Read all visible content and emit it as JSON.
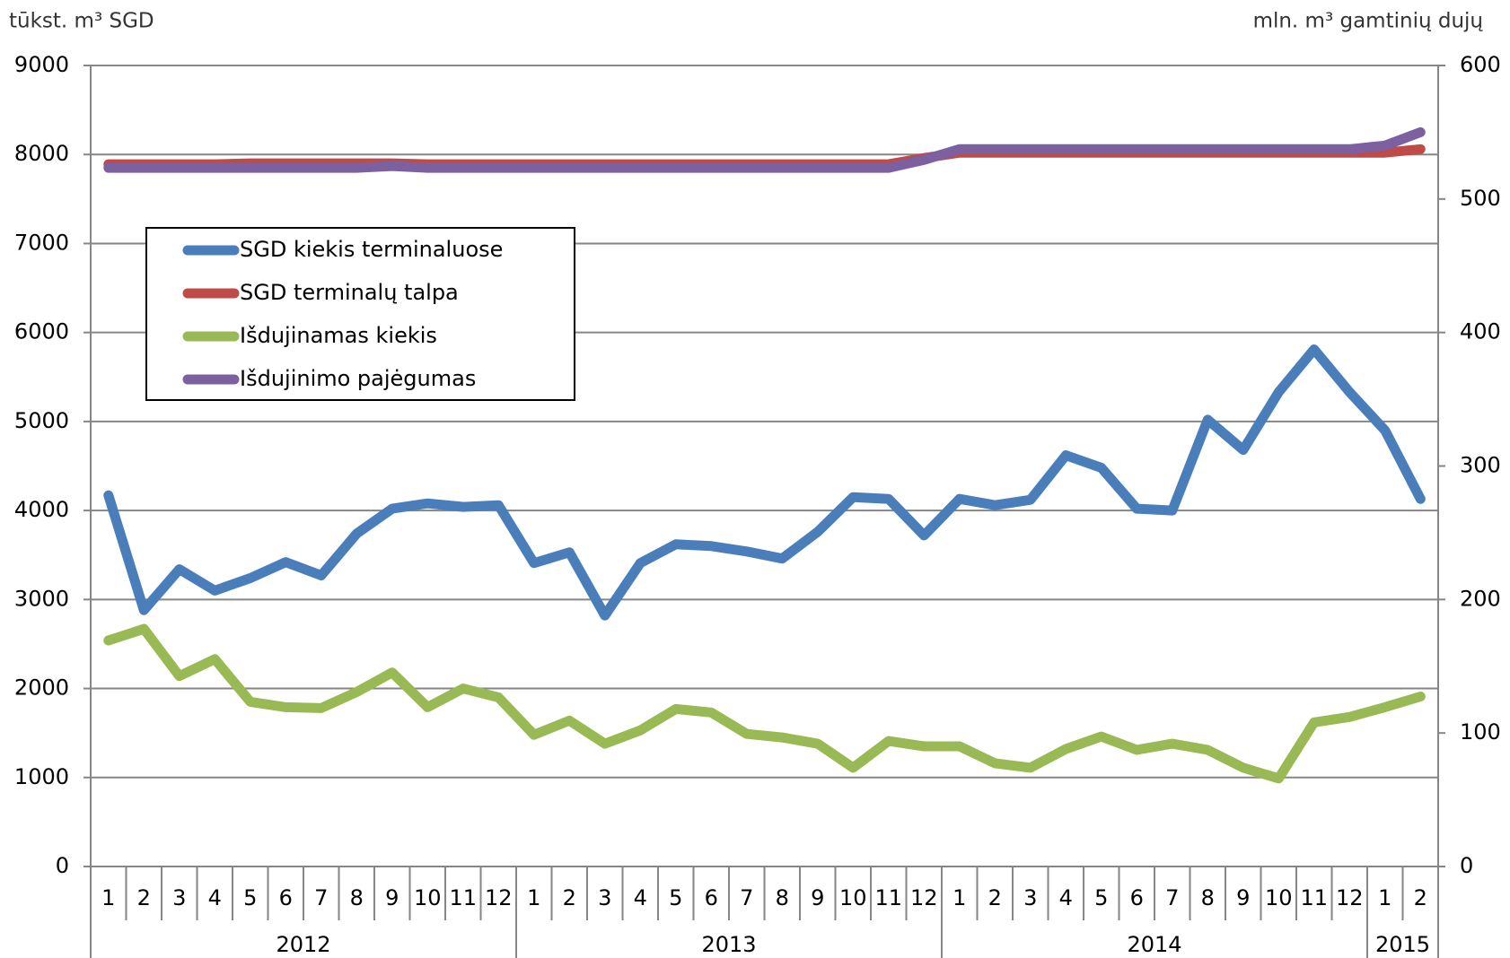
{
  "chart_data": {
    "type": "line",
    "y_axis_label": "tūkst. m³ SGD",
    "y2_axis_label": "mln. m³ gamtinių dujų",
    "categories": [
      "1",
      "2",
      "3",
      "4",
      "5",
      "6",
      "7",
      "8",
      "9",
      "10",
      "11",
      "12",
      "1",
      "2",
      "3",
      "4",
      "5",
      "6",
      "7",
      "8",
      "9",
      "10",
      "11",
      "12",
      "1",
      "2",
      "3",
      "4",
      "5",
      "6",
      "7",
      "8",
      "9",
      "10",
      "11",
      "12",
      "1",
      "2"
    ],
    "year_groups": [
      "2012",
      "2013",
      "2014",
      "2015"
    ],
    "ylim": [
      0,
      9000
    ],
    "yticks": [
      0,
      1000,
      2000,
      3000,
      4000,
      5000,
      6000,
      7000,
      8000,
      9000
    ],
    "y2lim": [
      0,
      600
    ],
    "y2ticks": [
      0,
      100,
      200,
      300,
      400,
      500,
      600
    ],
    "grid": true,
    "legend": "upper left",
    "series": [
      {
        "name": "SGD kiekis terminaluose",
        "color": "#4a7ebb",
        "values": [
          4170,
          2880,
          3340,
          3100,
          3240,
          3420,
          3270,
          3740,
          4020,
          4080,
          4040,
          4060,
          3410,
          3530,
          2820,
          3410,
          3620,
          3600,
          3540,
          3460,
          3760,
          4150,
          4130,
          3720,
          4130,
          4060,
          4120,
          4620,
          4480,
          4020,
          4000,
          5020,
          4680,
          5330,
          5810,
          5330,
          4900,
          4130
        ]
      },
      {
        "name": "SGD terminalų talpa",
        "color": "#be4b48",
        "values": [
          7890,
          7890,
          7890,
          7890,
          7900,
          7900,
          7900,
          7900,
          7900,
          7890,
          7890,
          7890,
          7890,
          7890,
          7890,
          7890,
          7890,
          7890,
          7890,
          7890,
          7890,
          7890,
          7890,
          7960,
          8020,
          8020,
          8020,
          8020,
          8020,
          8020,
          8020,
          8020,
          8020,
          8020,
          8020,
          8020,
          8020,
          8060
        ]
      },
      {
        "name": "Išdujinamas kiekis",
        "color": "#98b954",
        "values": [
          2540,
          2670,
          2140,
          2330,
          1850,
          1790,
          1780,
          1960,
          2180,
          1790,
          2000,
          1900,
          1480,
          1640,
          1380,
          1530,
          1770,
          1730,
          1490,
          1450,
          1380,
          1110,
          1410,
          1350,
          1350,
          1160,
          1110,
          1320,
          1460,
          1310,
          1380,
          1310,
          1110,
          990,
          1620,
          1680,
          1790,
          1910
        ]
      },
      {
        "name": "Išdujinimo pajėgumas",
        "color": "#7d60a0",
        "values": [
          7850,
          7850,
          7850,
          7850,
          7850,
          7850,
          7850,
          7850,
          7870,
          7850,
          7850,
          7850,
          7850,
          7850,
          7850,
          7850,
          7850,
          7850,
          7850,
          7850,
          7850,
          7850,
          7850,
          7940,
          8060,
          8060,
          8060,
          8060,
          8060,
          8060,
          8060,
          8060,
          8060,
          8060,
          8060,
          8060,
          8100,
          8250
        ]
      }
    ]
  }
}
